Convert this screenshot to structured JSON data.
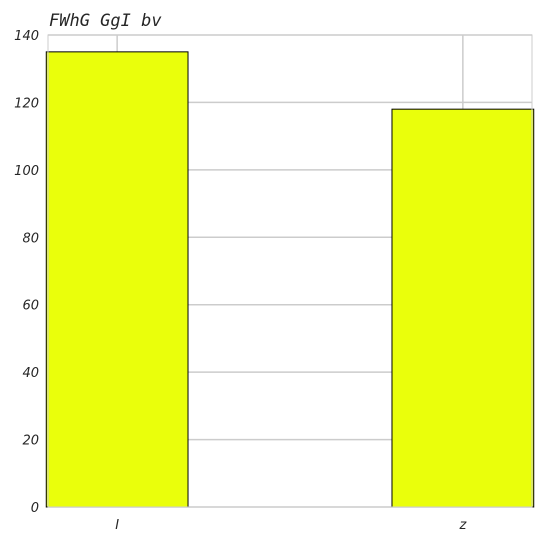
{
  "chart_data": {
    "type": "bar",
    "title": "FWhG GgI bv",
    "xlabel": "",
    "ylabel": "",
    "categories": [
      "I",
      "z"
    ],
    "values": [
      135,
      118
    ],
    "ylim": [
      0,
      140
    ],
    "yticks": [
      0,
      20,
      40,
      60,
      80,
      100,
      120,
      140
    ],
    "grid": true,
    "bar_color": "#eaff0b",
    "bar_edge_color": "#000000",
    "grid_color": "#cccccc",
    "frame_color": "#cccccc",
    "text_color": "#262626"
  }
}
